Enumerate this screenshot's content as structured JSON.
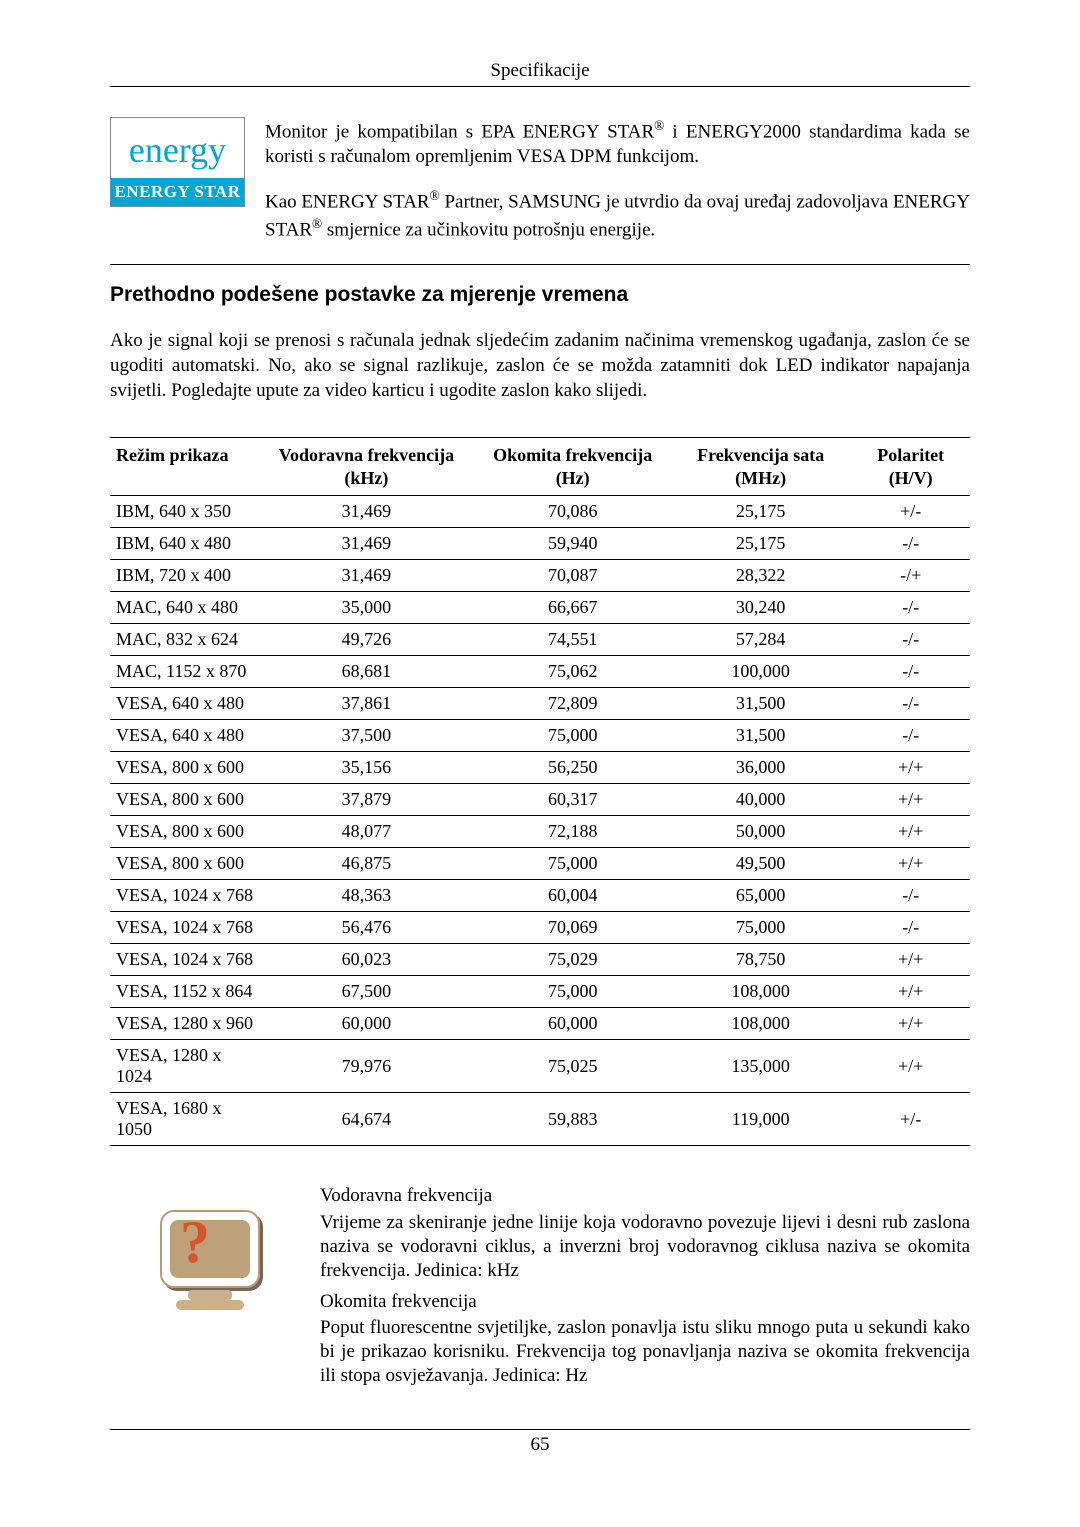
{
  "header": {
    "title": "Specifikacije"
  },
  "intro": {
    "logo": {
      "script": "energy",
      "bar": "ENERGY STAR"
    },
    "para1_a": "Monitor je kompatibilan s EPA ENERGY STAR",
    "para1_b": " i ENERGY2000 standardima kada se koristi s računalom opremljenim VESA DPM funkcijom.",
    "para2_a": "Kao ENERGY STAR",
    "para2_b": " Partner, SAMSUNG je utvrdio da ovaj uređaj zadovoljava ENERGY STAR",
    "para2_c": " smjernice za učinkovitu potrošnju energije.",
    "reg": "®"
  },
  "section": {
    "heading": "Prethodno podešene postavke za mjerenje vremena",
    "para": "Ako je signal koji se prenosi s računala jednak sljedećim zadanim načinima vremenskog ugađanja, zaslon će se ugoditi automatski. No, ako se signal razlikuje, zaslon će se možda zatamniti dok LED indikator napajanja svijetli. Pogledajte upute za video karticu i ugodite zaslon kako slijedi."
  },
  "table": {
    "headers": {
      "mode": "Režim prikaza",
      "h": "Vodoravna frekvencija (kHz)",
      "v": "Okomita frekvencija (Hz)",
      "clk": "Frekvencija sata (MHz)",
      "pol": "Polaritet (H/V)"
    },
    "rows": [
      {
        "m": "IBM, 640 x 350",
        "h": "31,469",
        "v": "70,086",
        "c": "25,175",
        "p": "+/-"
      },
      {
        "m": "IBM, 640 x 480",
        "h": "31,469",
        "v": "59,940",
        "c": "25,175",
        "p": "-/-"
      },
      {
        "m": "IBM, 720 x 400",
        "h": "31,469",
        "v": "70,087",
        "c": "28,322",
        "p": "-/+"
      },
      {
        "m": "MAC, 640 x 480",
        "h": "35,000",
        "v": "66,667",
        "c": "30,240",
        "p": "-/-"
      },
      {
        "m": "MAC, 832 x 624",
        "h": "49,726",
        "v": "74,551",
        "c": "57,284",
        "p": "-/-"
      },
      {
        "m": "MAC, 1152 x 870",
        "h": "68,681",
        "v": "75,062",
        "c": "100,000",
        "p": "-/-"
      },
      {
        "m": "VESA, 640 x 480",
        "h": "37,861",
        "v": "72,809",
        "c": "31,500",
        "p": "-/-"
      },
      {
        "m": "VESA, 640 x 480",
        "h": "37,500",
        "v": "75,000",
        "c": "31,500",
        "p": "-/-"
      },
      {
        "m": "VESA, 800 x 600",
        "h": "35,156",
        "v": "56,250",
        "c": "36,000",
        "p": "+/+"
      },
      {
        "m": "VESA, 800 x 600",
        "h": "37,879",
        "v": "60,317",
        "c": "40,000",
        "p": "+/+"
      },
      {
        "m": "VESA, 800 x 600",
        "h": "48,077",
        "v": "72,188",
        "c": "50,000",
        "p": "+/+"
      },
      {
        "m": "VESA, 800 x 600",
        "h": "46,875",
        "v": "75,000",
        "c": "49,500",
        "p": "+/+"
      },
      {
        "m": "VESA, 1024 x 768",
        "h": "48,363",
        "v": "60,004",
        "c": "65,000",
        "p": "-/-"
      },
      {
        "m": "VESA, 1024 x 768",
        "h": "56,476",
        "v": "70,069",
        "c": "75,000",
        "p": "-/-"
      },
      {
        "m": "VESA, 1024 x 768",
        "h": "60,023",
        "v": "75,029",
        "c": "78,750",
        "p": "+/+"
      },
      {
        "m": "VESA, 1152 x 864",
        "h": "67,500",
        "v": "75,000",
        "c": "108,000",
        "p": "+/+"
      },
      {
        "m": "VESA, 1280 x 960",
        "h": "60,000",
        "v": "60,000",
        "c": "108,000",
        "p": "+/+"
      },
      {
        "m": "VESA, 1280 x 1024",
        "h": "79,976",
        "v": "75,025",
        "c": "135,000",
        "p": "+/+"
      },
      {
        "m": "VESA, 1680 x 1050",
        "h": "64,674",
        "v": "59,883",
        "c": "119,000",
        "p": "+/-"
      }
    ]
  },
  "defs": {
    "h_title": "Vodoravna frekvencija",
    "h_body": "Vrijeme za skeniranje jedne linije koja vodoravno povezuje lijevi i desni rub zaslona naziva se vodoravni ciklus, a inverzni broj vodoravnog ciklusa naziva se okomita frekvencija. Jedinica: kHz",
    "v_title": "Okomita frekvencija",
    "v_body": "Poput fluorescentne svjetiljke, zaslon ponavlja istu sliku mnogo puta u sekundi kako bi je prikazao korisniku. Frekvencija tog ponavljanja naziva se okomita frekvencija ili stopa osvježavanja. Jedinica: Hz"
  },
  "footer": {
    "page": "65"
  }
}
